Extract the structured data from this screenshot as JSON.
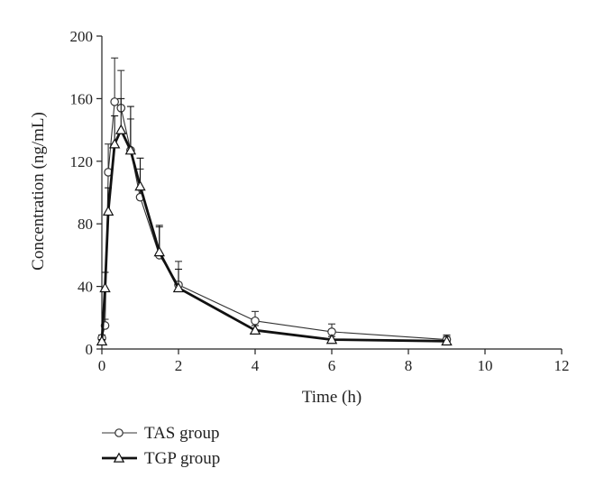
{
  "chart_data": {
    "type": "line",
    "xlabel": "Time (h)",
    "ylabel": "Concentration (ng/mL)",
    "xlim": [
      0,
      12
    ],
    "ylim": [
      0,
      200
    ],
    "xticks": [
      0,
      2,
      4,
      6,
      8,
      10,
      12
    ],
    "yticks": [
      0,
      40,
      80,
      120,
      160,
      200
    ],
    "grid": false,
    "legend_position": "bottom-left",
    "series": [
      {
        "name": "TAS group",
        "marker": "circle",
        "line": "thin",
        "color": "#333333",
        "x": [
          0,
          0.083,
          0.167,
          0.333,
          0.5,
          0.75,
          1,
          1.5,
          2,
          4,
          6,
          9
        ],
        "y": [
          7,
          15,
          113,
          158,
          154,
          127,
          97,
          60,
          41,
          18,
          11,
          6
        ],
        "err": [
          2,
          4,
          18,
          28,
          24,
          20,
          18,
          18,
          15,
          6,
          5,
          3
        ]
      },
      {
        "name": "TGP group",
        "marker": "triangle",
        "line": "thick",
        "color": "#111111",
        "x": [
          0,
          0.083,
          0.167,
          0.333,
          0.5,
          0.75,
          1,
          1.5,
          2,
          4,
          6,
          9
        ],
        "y": [
          5,
          39,
          88,
          131,
          140,
          127,
          104,
          62,
          39,
          12,
          6,
          5
        ],
        "err": [
          1,
          10,
          15,
          18,
          20,
          28,
          18,
          17,
          12,
          3,
          2,
          3
        ]
      }
    ]
  }
}
